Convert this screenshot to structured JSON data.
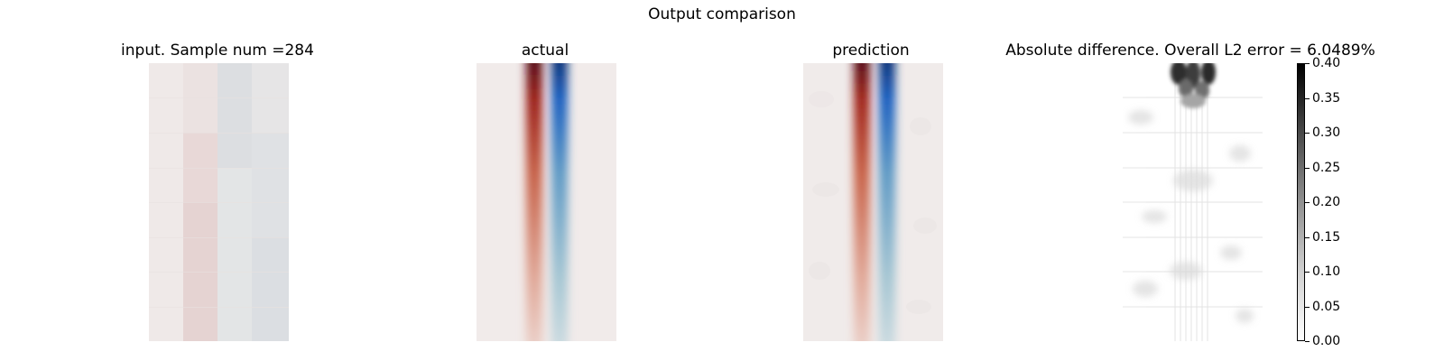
{
  "suptitle": "Output comparison",
  "panels": [
    {
      "key": "input",
      "title": "input. Sample num =284"
    },
    {
      "key": "actual",
      "title": "actual"
    },
    {
      "key": "prediction",
      "title": "prediction"
    },
    {
      "key": "difference",
      "title": "Absolute difference. Overall L2 error = 6.0489%"
    }
  ],
  "chart_data": {
    "type": "heatmap",
    "title": "Output comparison",
    "colormaps": {
      "fields": "diverging red-white-blue",
      "difference": "gray reversed (white = 0, black = max)"
    },
    "colorbar": {
      "range": [
        0.0,
        0.4
      ],
      "ticks": [
        "0.00",
        "0.05",
        "0.10",
        "0.15",
        "0.20",
        "0.25",
        "0.30",
        "0.35",
        "0.40"
      ]
    },
    "sample_num": 284,
    "overall_l2_error_percent": 6.0489,
    "colors": {
      "red": "#7a0d12",
      "blue": "#0b4aa8",
      "neutral": "#f1ebea"
    }
  }
}
